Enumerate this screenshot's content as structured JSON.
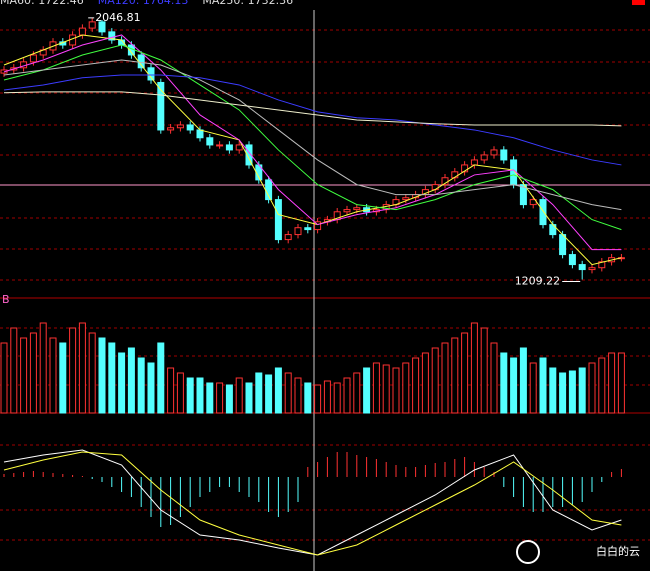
{
  "chart_data": {
    "type": "candlestick",
    "legend": [
      {
        "text": "MA60: 1722.46",
        "color": "#dddddd"
      },
      {
        "text": "MA120: 1764.13",
        "color": "#3c3cff"
      },
      {
        "text": "MA250: 1732.36",
        "color": "#dddddd"
      }
    ],
    "annotations": [
      {
        "text": "2046.81",
        "index": 9,
        "value": 2046.81
      },
      {
        "text": "1209.22",
        "index": 59,
        "value": 1209.22
      }
    ],
    "ylim": [
      1150,
      2104
    ],
    "up_color": "#ff3232",
    "down_color": "#54ffff",
    "open": [
      1870,
      1880,
      1887,
      1906,
      1928,
      1944,
      1970,
      1960,
      1992,
      2014,
      2034,
      2002,
      1976,
      1960,
      1928,
      1887,
      1840,
      1688,
      1695,
      1704,
      1688,
      1663,
      1640,
      1640,
      1624,
      1640,
      1576,
      1528,
      1465,
      1337,
      1353,
      1375,
      1369,
      1394,
      1401,
      1426,
      1433,
      1439,
      1426,
      1433,
      1449,
      1465,
      1471,
      1481,
      1497,
      1513,
      1535,
      1554,
      1576,
      1592,
      1608,
      1624,
      1592,
      1513,
      1449,
      1465,
      1385,
      1353,
      1289,
      1257,
      1241,
      1247,
      1266,
      1279
    ],
    "close": [
      1880,
      1887,
      1906,
      1928,
      1944,
      1970,
      1960,
      1992,
      2014,
      2034,
      2002,
      1976,
      1960,
      1928,
      1887,
      1848,
      1688,
      1695,
      1704,
      1688,
      1663,
      1640,
      1640,
      1624,
      1640,
      1576,
      1528,
      1465,
      1337,
      1353,
      1375,
      1369,
      1394,
      1401,
      1426,
      1433,
      1439,
      1426,
      1433,
      1449,
      1465,
      1471,
      1481,
      1497,
      1513,
      1535,
      1554,
      1576,
      1592,
      1608,
      1624,
      1592,
      1513,
      1449,
      1465,
      1385,
      1353,
      1289,
      1257,
      1241,
      1247,
      1266,
      1279,
      1279
    ],
    "high": [
      1892,
      1899,
      1918,
      1940,
      1956,
      1982,
      1982,
      2004,
      2026,
      2046.81,
      2040,
      2014,
      1988,
      1972,
      1940,
      1899,
      1852,
      1707,
      1716,
      1716,
      1700,
      1675,
      1652,
      1652,
      1652,
      1652,
      1588,
      1540,
      1477,
      1365,
      1387,
      1387,
      1406,
      1413,
      1438,
      1445,
      1451,
      1451,
      1445,
      1461,
      1477,
      1483,
      1493,
      1509,
      1525,
      1547,
      1566,
      1588,
      1604,
      1620,
      1636,
      1636,
      1604,
      1525,
      1477,
      1477,
      1397,
      1365,
      1301,
      1269,
      1259,
      1278,
      1291,
      1291
    ],
    "low": [
      1858,
      1868,
      1875,
      1894,
      1916,
      1932,
      1948,
      1948,
      1980,
      2002,
      1990,
      1964,
      1948,
      1916,
      1875,
      1836,
      1676,
      1676,
      1683,
      1676,
      1651,
      1628,
      1628,
      1612,
      1612,
      1564,
      1516,
      1453,
      1325,
      1325,
      1341,
      1357,
      1357,
      1382,
      1389,
      1414,
      1421,
      1414,
      1414,
      1421,
      1437,
      1453,
      1459,
      1469,
      1485,
      1501,
      1523,
      1542,
      1564,
      1580,
      1596,
      1580,
      1501,
      1437,
      1437,
      1373,
      1341,
      1277,
      1245,
      1209.22,
      1229,
      1235,
      1254,
      1267
    ],
    "lines": [
      {
        "color": "#ffff40",
        "x": [
          0,
          4,
          8,
          12,
          16,
          20,
          24,
          28,
          32,
          36,
          40,
          44,
          48,
          52,
          56,
          60,
          63
        ],
        "values": [
          1896,
          1944,
          1992,
          1976,
          1816,
          1688,
          1656,
          1417,
          1385,
          1426,
          1449,
          1497,
          1576,
          1560,
          1385,
          1257,
          1279
        ]
      },
      {
        "color": "#ff40ff",
        "x": [
          0,
          4,
          8,
          12,
          16,
          20,
          24,
          28,
          32,
          36,
          40,
          44,
          48,
          52,
          56,
          60,
          63
        ],
        "values": [
          1874,
          1912,
          1960,
          1992,
          1880,
          1736,
          1656,
          1497,
          1385,
          1417,
          1439,
          1481,
          1544,
          1560,
          1449,
          1305,
          1305
        ]
      },
      {
        "color": "#40ff40",
        "x": [
          0,
          4,
          8,
          12,
          16,
          20,
          24,
          28,
          32,
          36,
          40,
          44,
          48,
          52,
          56,
          60,
          63
        ],
        "values": [
          1848,
          1880,
          1928,
          1960,
          1912,
          1832,
          1752,
          1624,
          1513,
          1449,
          1433,
          1465,
          1513,
          1544,
          1497,
          1401,
          1369
        ]
      },
      {
        "color": "#bbbbbb",
        "x": [
          0,
          4,
          8,
          12,
          16,
          20,
          24,
          28,
          32,
          36,
          40,
          44,
          48,
          52,
          56,
          60,
          63
        ],
        "values": [
          1864,
          1880,
          1896,
          1912,
          1896,
          1848,
          1784,
          1688,
          1592,
          1513,
          1481,
          1481,
          1497,
          1513,
          1481,
          1449,
          1433
        ]
      },
      {
        "color": "#3c3cff",
        "x": [
          0,
          4,
          8,
          12,
          16,
          20,
          24,
          28,
          32,
          36,
          40,
          44,
          48,
          52,
          56,
          60,
          63
        ],
        "values": [
          1816,
          1832,
          1855,
          1864,
          1864,
          1855,
          1832,
          1784,
          1746,
          1727,
          1720,
          1704,
          1688,
          1663,
          1624,
          1592,
          1576
        ]
      },
      {
        "color": "#eeeecc",
        "x": [
          0,
          4,
          8,
          12,
          16,
          20,
          24,
          28,
          32,
          36,
          40,
          44,
          48,
          52,
          56,
          60,
          63
        ],
        "values": [
          1807,
          1810,
          1810,
          1810,
          1800,
          1784,
          1768,
          1752,
          1736,
          1720,
          1714,
          1708,
          1704,
          1704,
          1704,
          1704,
          1701
        ]
      }
    ],
    "volume": {
      "label": "B",
      "ylim": [
        0,
        115
      ],
      "values": [
        70,
        85,
        75,
        80,
        90,
        75,
        70,
        85,
        90,
        80,
        75,
        70,
        60,
        65,
        55,
        50,
        70,
        45,
        40,
        35,
        35,
        30,
        30,
        28,
        35,
        30,
        40,
        38,
        45,
        40,
        35,
        30,
        28,
        32,
        30,
        35,
        40,
        45,
        50,
        48,
        45,
        50,
        55,
        60,
        65,
        70,
        75,
        80,
        90,
        85,
        70,
        60,
        55,
        65,
        50,
        55,
        45,
        40,
        42,
        45,
        50,
        55,
        60,
        60
      ]
    },
    "macd": {
      "ylim": [
        -94,
        64
      ],
      "values": [
        3,
        4,
        5,
        6,
        5,
        4,
        3,
        2,
        1,
        -2,
        -5,
        -10,
        -15,
        -20,
        -30,
        -40,
        -50,
        -48,
        -40,
        -30,
        -20,
        -15,
        -10,
        -10,
        -15,
        -20,
        -25,
        -35,
        -40,
        -35,
        -25,
        10,
        15,
        20,
        25,
        25,
        22,
        20,
        18,
        15,
        12,
        10,
        10,
        12,
        14,
        15,
        18,
        20,
        15,
        10,
        5,
        -10,
        -20,
        -30,
        -35,
        -35,
        -30,
        -30,
        -28,
        -25,
        -15,
        -5,
        5,
        8
      ],
      "lines": [
        {
          "color": "#ffffff",
          "x": [
            0,
            4,
            8,
            12,
            16,
            20,
            24,
            28,
            32,
            36,
            40,
            44,
            48,
            52,
            56,
            60,
            63
          ],
          "values": [
            15,
            22,
            27,
            12,
            -33,
            -58,
            -63,
            -71,
            -78,
            -58,
            -38,
            -18,
            7,
            22,
            -33,
            -53,
            -43
          ]
        },
        {
          "color": "#ffff40",
          "x": [
            0,
            4,
            8,
            12,
            16,
            20,
            24,
            28,
            32,
            36,
            40,
            44,
            48,
            52,
            56,
            60,
            63
          ],
          "values": [
            7,
            17,
            25,
            22,
            -13,
            -43,
            -58,
            -68,
            -78,
            -68,
            -48,
            -28,
            -8,
            15,
            -13,
            -43,
            -48
          ]
        }
      ]
    },
    "watermark": "白白的云"
  }
}
